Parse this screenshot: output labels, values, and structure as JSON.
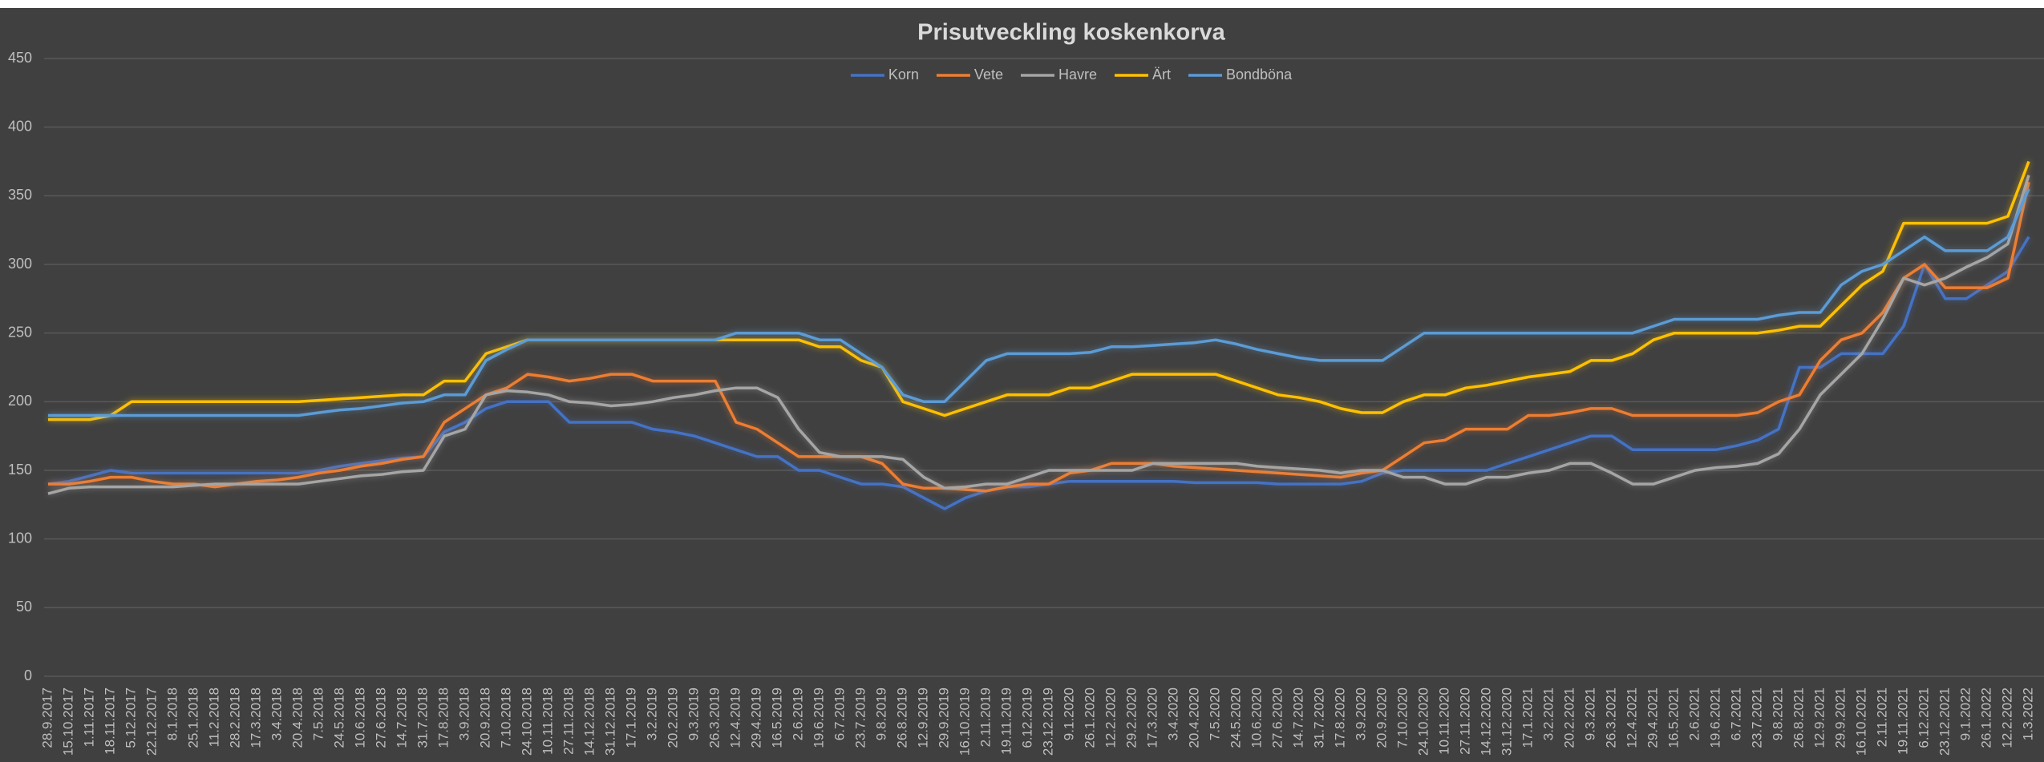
{
  "chart_data": {
    "type": "line",
    "title": "Prisutveckling koskenkorva",
    "categories": [
      "28.9.2017",
      "15.10.2017",
      "1.11.2017",
      "18.11.2017",
      "5.12.2017",
      "22.12.2017",
      "8.1.2018",
      "25.1.2018",
      "11.2.2018",
      "28.2.2018",
      "17.3.2018",
      "3.4.2018",
      "20.4.2018",
      "7.5.2018",
      "24.5.2018",
      "10.6.2018",
      "27.6.2018",
      "14.7.2018",
      "31.7.2018",
      "17.8.2018",
      "3.9.2018",
      "20.9.2018",
      "7.10.2018",
      "24.10.2018",
      "10.11.2018",
      "27.11.2018",
      "14.12.2018",
      "31.12.2018",
      "17.1.2019",
      "3.2.2019",
      "20.2.2019",
      "9.3.2019",
      "26.3.2019",
      "12.4.2019",
      "29.4.2019",
      "16.5.2019",
      "2.6.2019",
      "19.6.2019",
      "6.7.2019",
      "23.7.2019",
      "9.8.2019",
      "26.8.2019",
      "12.9.2019",
      "29.9.2019",
      "16.10.2019",
      "2.11.2019",
      "19.11.2019",
      "6.12.2019",
      "23.12.2019",
      "9.1.2020",
      "26.1.2020",
      "12.2.2020",
      "29.2.2020",
      "17.3.2020",
      "3.4.2020",
      "20.4.2020",
      "7.5.2020",
      "24.5.2020",
      "10.6.2020",
      "27.6.2020",
      "14.7.2020",
      "31.7.2020",
      "17.8.2020",
      "3.9.2020",
      "20.9.2020",
      "7.10.2020",
      "24.10.2020",
      "10.11.2020",
      "27.11.2020",
      "14.12.2020",
      "31.12.2020",
      "17.1.2021",
      "3.2.2021",
      "20.2.2021",
      "9.3.2021",
      "26.3.2021",
      "12.4.2021",
      "29.4.2021",
      "16.5.2021",
      "2.6.2021",
      "19.6.2021",
      "6.7.2021",
      "23.7.2021",
      "9.8.2021",
      "26.8.2021",
      "12.9.2021",
      "29.9.2021",
      "16.10.2021",
      "2.11.2021",
      "19.11.2021",
      "6.12.2021",
      "23.12.2021",
      "9.1.2022",
      "26.1.2022",
      "12.2.2022",
      "1.3.2022"
    ],
    "series": [
      {
        "name": "Korn",
        "color": "#4472c4",
        "values": [
          140,
          142,
          146,
          150,
          148,
          148,
          148,
          148,
          148,
          148,
          148,
          148,
          148,
          150,
          153,
          155,
          157,
          159,
          160,
          178,
          185,
          195,
          200,
          200,
          200,
          185,
          185,
          185,
          185,
          180,
          178,
          175,
          170,
          165,
          160,
          160,
          150,
          150,
          145,
          140,
          140,
          138,
          130,
          122,
          130,
          135,
          138,
          138,
          140,
          142,
          142,
          142,
          142,
          142,
          142,
          141,
          141,
          141,
          141,
          140,
          140,
          140,
          140,
          142,
          148,
          150,
          150,
          150,
          150,
          150,
          155,
          160,
          165,
          170,
          175,
          175,
          165,
          165,
          165,
          165,
          165,
          168,
          172,
          180,
          225,
          225,
          235,
          235,
          235,
          255,
          300,
          275,
          275,
          285,
          295,
          320
        ]
      },
      {
        "name": "Vete",
        "color": "#ed7d31",
        "values": [
          140,
          140,
          142,
          145,
          145,
          142,
          140,
          140,
          138,
          140,
          142,
          143,
          145,
          148,
          150,
          153,
          155,
          158,
          160,
          185,
          195,
          205,
          210,
          220,
          218,
          215,
          217,
          220,
          220,
          215,
          215,
          215,
          215,
          185,
          180,
          170,
          160,
          160,
          160,
          160,
          155,
          140,
          137,
          137,
          136,
          135,
          138,
          140,
          140,
          148,
          150,
          155,
          155,
          155,
          153,
          152,
          151,
          150,
          149,
          148,
          147,
          146,
          145,
          148,
          150,
          160,
          170,
          172,
          180,
          180,
          180,
          190,
          190,
          192,
          195,
          195,
          190,
          190,
          190,
          190,
          190,
          190,
          192,
          200,
          205,
          230,
          245,
          250,
          265,
          290,
          300,
          283,
          283,
          283,
          290,
          360
        ]
      },
      {
        "name": "Havre",
        "color": "#a5a5a5",
        "values": [
          133,
          137,
          138,
          138,
          138,
          138,
          138,
          139,
          140,
          140,
          140,
          140,
          140,
          142,
          144,
          146,
          147,
          149,
          150,
          175,
          180,
          205,
          208,
          207,
          205,
          200,
          199,
          197,
          198,
          200,
          203,
          205,
          208,
          210,
          210,
          203,
          180,
          163,
          160,
          160,
          160,
          158,
          145,
          137,
          138,
          140,
          140,
          145,
          150,
          150,
          150,
          150,
          150,
          155,
          155,
          155,
          155,
          155,
          153,
          152,
          151,
          150,
          148,
          150,
          150,
          145,
          145,
          140,
          140,
          145,
          145,
          148,
          150,
          155,
          155,
          148,
          140,
          140,
          145,
          150,
          152,
          153,
          155,
          162,
          180,
          205,
          220,
          235,
          260,
          290,
          285,
          290,
          298,
          305,
          315,
          365
        ]
      },
      {
        "name": "Ärt",
        "color": "#ffc000",
        "values": [
          187,
          187,
          187,
          190,
          200,
          200,
          200,
          200,
          200,
          200,
          200,
          200,
          200,
          201,
          202,
          203,
          204,
          205,
          205,
          215,
          215,
          235,
          240,
          245,
          245,
          245,
          245,
          245,
          245,
          245,
          245,
          245,
          245,
          245,
          245,
          245,
          245,
          240,
          240,
          230,
          225,
          200,
          195,
          190,
          195,
          200,
          205,
          205,
          205,
          210,
          210,
          215,
          220,
          220,
          220,
          220,
          220,
          215,
          210,
          205,
          203,
          200,
          195,
          192,
          192,
          200,
          205,
          205,
          210,
          212,
          215,
          218,
          220,
          222,
          230,
          230,
          235,
          245,
          250,
          250,
          250,
          250,
          250,
          252,
          255,
          255,
          270,
          285,
          295,
          330,
          330,
          330,
          330,
          330,
          335,
          375
        ]
      },
      {
        "name": "Bondböna",
        "color": "#5b9bd5",
        "values": [
          190,
          190,
          190,
          190,
          190,
          190,
          190,
          190,
          190,
          190,
          190,
          190,
          190,
          192,
          194,
          195,
          197,
          199,
          200,
          205,
          205,
          230,
          238,
          245,
          245,
          245,
          245,
          245,
          245,
          245,
          245,
          245,
          245,
          250,
          250,
          250,
          250,
          245,
          245,
          235,
          225,
          205,
          200,
          200,
          215,
          230,
          235,
          235,
          235,
          235,
          236,
          240,
          240,
          241,
          242,
          243,
          245,
          242,
          238,
          235,
          232,
          230,
          230,
          230,
          230,
          240,
          250,
          250,
          250,
          250,
          250,
          250,
          250,
          250,
          250,
          250,
          250,
          255,
          260,
          260,
          260,
          260,
          260,
          263,
          265,
          265,
          285,
          295,
          300,
          310,
          320,
          310,
          310,
          310,
          320,
          355
        ]
      }
    ],
    "ylim": [
      0,
      450
    ],
    "yticks": [
      0,
      50,
      100,
      150,
      200,
      250,
      300,
      350,
      400,
      450
    ],
    "grid": true,
    "legend": "top"
  }
}
